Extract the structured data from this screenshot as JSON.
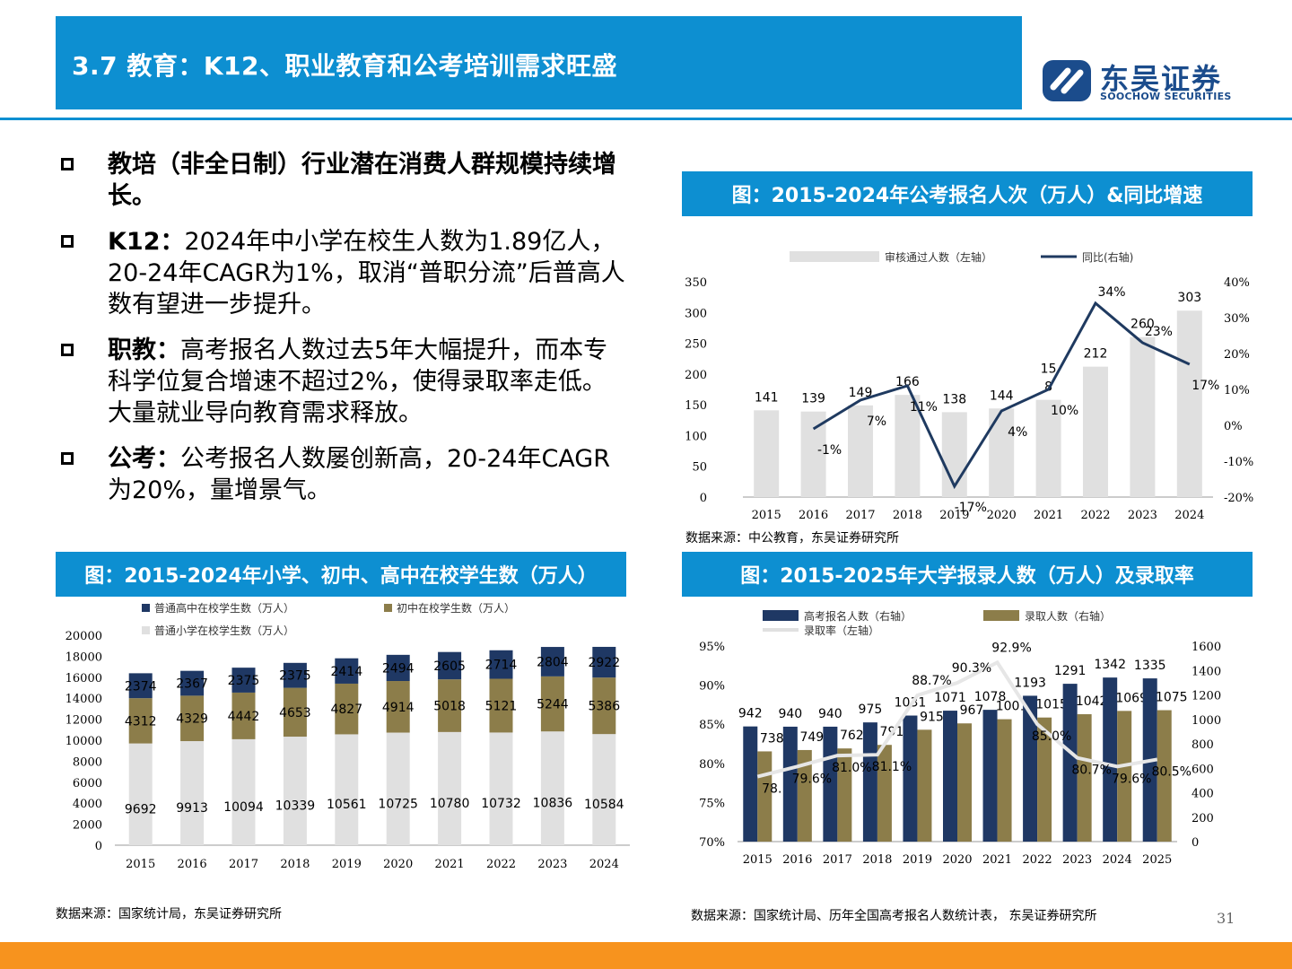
{
  "header": {
    "title": "3.7 教育：K12、职业教育和公考培训需求旺盛",
    "logo_name": "东吴证券",
    "logo_en": "SOOCHOW SECURITIES"
  },
  "bullets": [
    {
      "bold": "教培（非全日制）行业潜在消费人群规模持续增长。",
      "text": ""
    },
    {
      "bold": "K12：",
      "text": "2024年中小学在校生人数为1.89亿人，20-24年CAGR为1%，取消“普职分流”后普高人数有望进一步提升。"
    },
    {
      "bold": "职教：",
      "text": "高考报名人数过去5年大幅提升，而本专科学位复合增速不超过2%，使得录取率走低。大量就业导向教育需求释放。"
    },
    {
      "bold": "公考：",
      "text": "公考报名人数屡创新高，20-24年CAGR为20%，量增景气。"
    }
  ],
  "sources": {
    "top_right": "数据来源：中公教育，东吴证券研究所",
    "bottom_left": "数据来源：国家统计局，东吴证券研究所",
    "bottom_right": "数据来源：国家统计局、历年全国高考报名人数统计表， 东吴证券研究所"
  },
  "page_number": "31",
  "colors": {
    "brand_blue": "#0d8fd1",
    "navy": "#1f3864",
    "olive": "#8c7d4a",
    "light_gray": "#e0e0e0",
    "line_navy": "#1f3a60",
    "footer_orange": "#f7931e"
  },
  "chart_data": [
    {
      "type": "bar",
      "title": "图：2015-2024年公考报名人次（万人）&同比增速",
      "categories": [
        "2015",
        "2016",
        "2017",
        "2018",
        "2019",
        "2020",
        "2021",
        "2022",
        "2023",
        "2024"
      ],
      "series": [
        {
          "name": "审核通过人数（左轴）",
          "type": "bar",
          "axis": "left",
          "values": [
            141,
            139,
            149,
            166,
            138,
            144,
            158,
            212,
            260,
            303
          ],
          "labels": [
            "141",
            "139",
            "149",
            "166",
            "138",
            "144",
            "15\n8",
            "212",
            "260",
            "303"
          ]
        },
        {
          "name": "同比(右轴)",
          "type": "line",
          "axis": "right",
          "values": [
            null,
            -1,
            7,
            11,
            -17,
            4,
            10,
            34,
            23,
            17
          ],
          "labels": [
            "",
            "-1%",
            "7%",
            "11%",
            "-17%",
            "4%",
            "10%",
            "34%",
            "23%",
            "17%"
          ]
        }
      ],
      "ylim_left": [
        0,
        350
      ],
      "yticks_left": [
        "0",
        "50",
        "100",
        "150",
        "200",
        "250",
        "300",
        "350"
      ],
      "ylim_right": [
        -20,
        40
      ],
      "yticks_right": [
        "-20%",
        "-10%",
        "0%",
        "10%",
        "20%",
        "30%",
        "40%"
      ],
      "legend": "top"
    },
    {
      "type": "bar",
      "title": "图：2015-2024年小学、初中、高中在校学生数（万人）",
      "stacked": true,
      "categories": [
        "2015",
        "2016",
        "2017",
        "2018",
        "2019",
        "2020",
        "2021",
        "2022",
        "2023",
        "2024"
      ],
      "series": [
        {
          "name": "普通小学在校学生数（万人）",
          "values": [
            9692,
            9913,
            10094,
            10339,
            10561,
            10725,
            10780,
            10732,
            10836,
            10584
          ]
        },
        {
          "name": "初中在校学生数（万人）",
          "values": [
            4312,
            4329,
            4442,
            4653,
            4827,
            4914,
            5018,
            5121,
            5244,
            5386
          ]
        },
        {
          "name": "普通高中在校学生数（万人）",
          "values": [
            2374,
            2367,
            2375,
            2375,
            2414,
            2494,
            2605,
            2714,
            2804,
            2922
          ]
        }
      ],
      "ylim": [
        0,
        20000
      ],
      "yticks": [
        "0",
        "2000",
        "4000",
        "6000",
        "8000",
        "10000",
        "12000",
        "14000",
        "16000",
        "18000",
        "20000"
      ],
      "legend": "top-left"
    },
    {
      "type": "bar",
      "title": "图：2015-2025年大学报录人数（万人）及录取率",
      "categories": [
        "2015",
        "2016",
        "2017",
        "2018",
        "2019",
        "2020",
        "2021",
        "2022",
        "2023",
        "2024",
        "2025"
      ],
      "series": [
        {
          "name": "高考报名人数（右轴）",
          "type": "bar",
          "axis": "right",
          "values": [
            942,
            940,
            940,
            975,
            1031,
            1071,
            1078,
            1193,
            1291,
            1342,
            1335
          ]
        },
        {
          "name": "录取人数（右轴）",
          "type": "bar",
          "axis": "right",
          "values": [
            738,
            749,
            762,
            791,
            915,
            967,
            1001,
            1015,
            1042,
            1069,
            1075
          ]
        },
        {
          "name": "录取率（左轴）",
          "type": "line",
          "axis": "left",
          "values": [
            78.3,
            79.6,
            81.0,
            81.1,
            88.7,
            90.3,
            92.9,
            85.0,
            80.7,
            79.6,
            80.5
          ],
          "labels": [
            "78.",
            "79.6%",
            "81.0%",
            "81.1%",
            "88.7%",
            "90.3%",
            "92.9%",
            "85.0%",
            "80.7%",
            "79.6%",
            "80.5%"
          ]
        }
      ],
      "ylim_left": [
        70,
        95
      ],
      "yticks_left": [
        "70%",
        "75%",
        "80%",
        "85%",
        "90%",
        "95%"
      ],
      "ylim_right": [
        0,
        1600
      ],
      "yticks_right": [
        "0",
        "200",
        "400",
        "600",
        "800",
        "1000",
        "1200",
        "1400",
        "1600"
      ],
      "legend": "top"
    }
  ]
}
